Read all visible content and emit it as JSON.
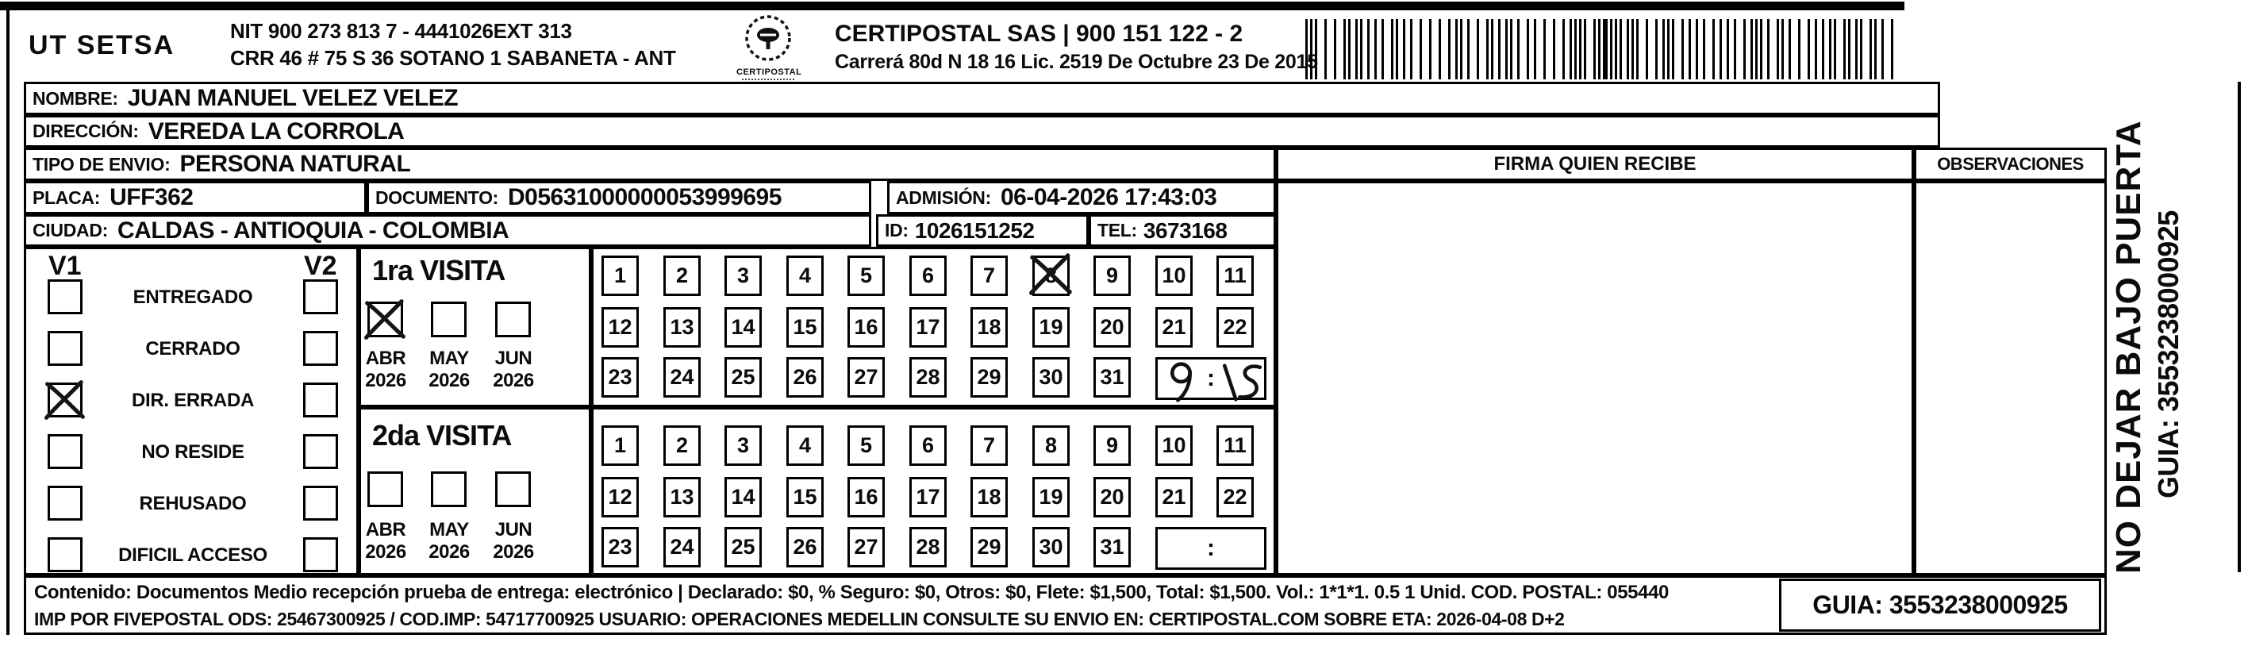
{
  "form": {
    "colors": {
      "ink": "#0b0b0b",
      "paper": "#ffffff"
    },
    "header": {
      "company": "UT SETSA",
      "nit_line": "NIT 900 273 813 7 - 4441026EXT 313",
      "address_line": "CRR 46 # 75 S 36 SOTANO 1 SABANETA - ANT",
      "logo_caption": "CERTIPOSTAL",
      "operator_line": "CERTIPOSTAL SAS | 900 151 122 - 2",
      "license_line": "Carrerá 80d N 18 16  Lic. 2519 De Octubre 23 De 2015"
    },
    "recipient": {
      "nombre_label": "NOMBRE:",
      "nombre": "JUAN MANUEL VELEZ VELEZ",
      "direccion_label": "DIRECCIÓN:",
      "direccion": "VEREDA LA CORROLA",
      "tipo_label": "TIPO DE ENVIO:",
      "tipo": "PERSONA NATURAL",
      "placa_label": "PLACA:",
      "placa": "UFF362",
      "documento_label": "DOCUMENTO:",
      "documento": "D05631000000053999695",
      "admision_label": "ADMISIÓN:",
      "admision": "06-04-2026 17:43:03",
      "ciudad_label": "CIUDAD:",
      "ciudad": "CALDAS - ANTIOQUIA - COLOMBIA",
      "id_label": "ID:",
      "id": "1026151252",
      "tel_label": "TEL:",
      "tel": "3673168"
    },
    "status_panel": {
      "v1_header": "V1",
      "v2_header": "V2",
      "rows": [
        {
          "label": "ENTREGADO",
          "v1_checked": false,
          "v2_checked": false
        },
        {
          "label": "CERRADO",
          "v1_checked": false,
          "v2_checked": false
        },
        {
          "label": "DIR. ERRADA",
          "v1_checked": true,
          "v2_checked": false
        },
        {
          "label": "NO RESIDE",
          "v1_checked": false,
          "v2_checked": false
        },
        {
          "label": "REHUSADO",
          "v1_checked": false,
          "v2_checked": false
        },
        {
          "label": "DIFICIL ACCESO",
          "v1_checked": false,
          "v2_checked": false
        }
      ]
    },
    "visits": [
      {
        "title": "1ra VISITA",
        "months": [
          {
            "month": "ABR",
            "year": "2026",
            "checked": true
          },
          {
            "month": "MAY",
            "year": "2026",
            "checked": false
          },
          {
            "month": "JUN",
            "year": "2026",
            "checked": false
          }
        ],
        "days": [
          1,
          2,
          3,
          4,
          5,
          6,
          7,
          8,
          9,
          10,
          11,
          12,
          13,
          14,
          15,
          16,
          17,
          18,
          19,
          20,
          21,
          22,
          23,
          24,
          25,
          26,
          27,
          28,
          29,
          30,
          31
        ],
        "marked_day": 8,
        "time_separator": ":",
        "handwritten_time": "9:15"
      },
      {
        "title": "2da VISITA",
        "months": [
          {
            "month": "ABR",
            "year": "2026",
            "checked": false
          },
          {
            "month": "MAY",
            "year": "2026",
            "checked": false
          },
          {
            "month": "JUN",
            "year": "2026",
            "checked": false
          }
        ],
        "days": [
          1,
          2,
          3,
          4,
          5,
          6,
          7,
          8,
          9,
          10,
          11,
          12,
          13,
          14,
          15,
          16,
          17,
          18,
          19,
          20,
          21,
          22,
          23,
          24,
          25,
          26,
          27,
          28,
          29,
          30,
          31
        ],
        "marked_day": null,
        "time_separator": ":",
        "handwritten_time": null
      }
    ],
    "signature_section": {
      "firma_header": "FIRMA QUIEN RECIBE",
      "observaciones_header": "OBSERVACIONES"
    },
    "side_note": {
      "line1": "NO DEJAR BAJO PUERTA",
      "line2": "GUIA: 3553238000925"
    },
    "footer": {
      "line1": "Contenido: Documentos Medio recepción prueba de entrega: electrónico | Declarado: $0, % Seguro: $0, Otros: $0, Flete: $1,500, Total: $1,500. Vol.: 1*1*1. 0.5  1 Unid. COD. POSTAL: 055440",
      "line2": "IMP POR FIVEPOSTAL ODS: 25467300925 / COD.IMP: 54717700925 USUARIO: OPERACIONES MEDELLIN CONSULTE SU ENVIO EN: CERTIPOSTAL.COM SOBRE ETA: 2026-04-08 D+2",
      "guia": "GUIA: 3553238000925"
    }
  }
}
